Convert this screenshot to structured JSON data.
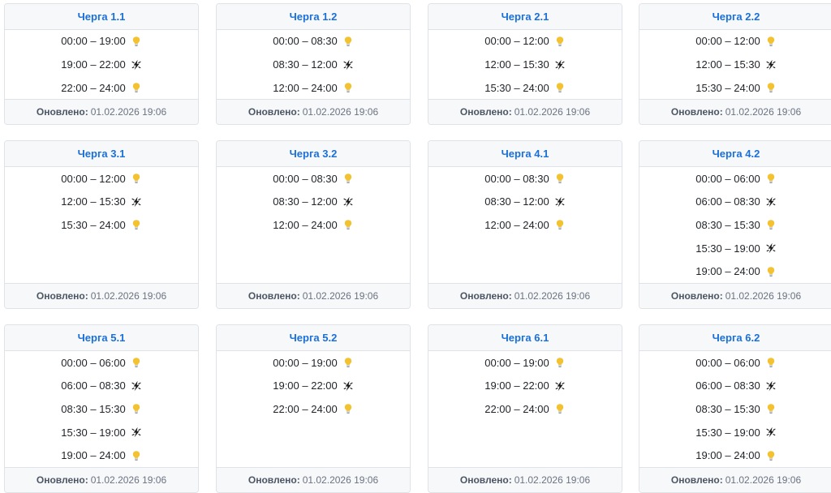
{
  "footer_label": "Оновлено:",
  "updated": "01.02.2026 19:06",
  "colors": {
    "title": "#1a6fd8",
    "bulb": "#f2c230",
    "bolt": "#1a1a1a"
  },
  "cards": [
    {
      "title": "Черга 1.1",
      "slots": [
        {
          "time": "00:00 – 19:00",
          "icon": "bulb-icon"
        },
        {
          "time": "19:00 – 22:00",
          "icon": "no-power-icon"
        },
        {
          "time": "22:00 – 24:00",
          "icon": "bulb-icon"
        }
      ]
    },
    {
      "title": "Черга 1.2",
      "slots": [
        {
          "time": "00:00 – 08:30",
          "icon": "bulb-icon"
        },
        {
          "time": "08:30 – 12:00",
          "icon": "no-power-icon"
        },
        {
          "time": "12:00 – 24:00",
          "icon": "bulb-icon"
        }
      ]
    },
    {
      "title": "Черга 2.1",
      "slots": [
        {
          "time": "00:00 – 12:00",
          "icon": "bulb-icon"
        },
        {
          "time": "12:00 – 15:30",
          "icon": "no-power-icon"
        },
        {
          "time": "15:30 – 24:00",
          "icon": "bulb-icon"
        }
      ]
    },
    {
      "title": "Черга 2.2",
      "slots": [
        {
          "time": "00:00 – 12:00",
          "icon": "bulb-icon"
        },
        {
          "time": "12:00 – 15:30",
          "icon": "no-power-icon"
        },
        {
          "time": "15:30 – 24:00",
          "icon": "bulb-icon"
        }
      ]
    },
    {
      "title": "Черга 3.1",
      "slots": [
        {
          "time": "00:00 – 12:00",
          "icon": "bulb-icon"
        },
        {
          "time": "12:00 – 15:30",
          "icon": "no-power-icon"
        },
        {
          "time": "15:30 – 24:00",
          "icon": "bulb-icon"
        }
      ]
    },
    {
      "title": "Черга 3.2",
      "slots": [
        {
          "time": "00:00 – 08:30",
          "icon": "bulb-icon"
        },
        {
          "time": "08:30 – 12:00",
          "icon": "no-power-icon"
        },
        {
          "time": "12:00 – 24:00",
          "icon": "bulb-icon"
        }
      ]
    },
    {
      "title": "Черга 4.1",
      "slots": [
        {
          "time": "00:00 – 08:30",
          "icon": "bulb-icon"
        },
        {
          "time": "08:30 – 12:00",
          "icon": "no-power-icon"
        },
        {
          "time": "12:00 – 24:00",
          "icon": "bulb-icon"
        }
      ]
    },
    {
      "title": "Черга 4.2",
      "slots": [
        {
          "time": "00:00 – 06:00",
          "icon": "bulb-icon"
        },
        {
          "time": "06:00 – 08:30",
          "icon": "no-power-icon"
        },
        {
          "time": "08:30 – 15:30",
          "icon": "bulb-icon"
        },
        {
          "time": "15:30 – 19:00",
          "icon": "no-power-icon"
        },
        {
          "time": "19:00 – 24:00",
          "icon": "bulb-icon"
        }
      ]
    },
    {
      "title": "Черга 5.1",
      "slots": [
        {
          "time": "00:00 – 06:00",
          "icon": "bulb-icon"
        },
        {
          "time": "06:00 – 08:30",
          "icon": "no-power-icon"
        },
        {
          "time": "08:30 – 15:30",
          "icon": "bulb-icon"
        },
        {
          "time": "15:30 – 19:00",
          "icon": "no-power-icon"
        },
        {
          "time": "19:00 – 24:00",
          "icon": "bulb-icon"
        }
      ]
    },
    {
      "title": "Черга 5.2",
      "slots": [
        {
          "time": "00:00 – 19:00",
          "icon": "bulb-icon"
        },
        {
          "time": "19:00 – 22:00",
          "icon": "no-power-icon"
        },
        {
          "time": "22:00 – 24:00",
          "icon": "bulb-icon"
        }
      ]
    },
    {
      "title": "Черга 6.1",
      "slots": [
        {
          "time": "00:00 – 19:00",
          "icon": "bulb-icon"
        },
        {
          "time": "19:00 – 22:00",
          "icon": "no-power-icon"
        },
        {
          "time": "22:00 – 24:00",
          "icon": "bulb-icon"
        }
      ]
    },
    {
      "title": "Черга 6.2",
      "slots": [
        {
          "time": "00:00 – 06:00",
          "icon": "bulb-icon"
        },
        {
          "time": "06:00 – 08:30",
          "icon": "no-power-icon"
        },
        {
          "time": "08:30 – 15:30",
          "icon": "bulb-icon"
        },
        {
          "time": "15:30 – 19:00",
          "icon": "no-power-icon"
        },
        {
          "time": "19:00 – 24:00",
          "icon": "bulb-icon"
        }
      ]
    }
  ]
}
